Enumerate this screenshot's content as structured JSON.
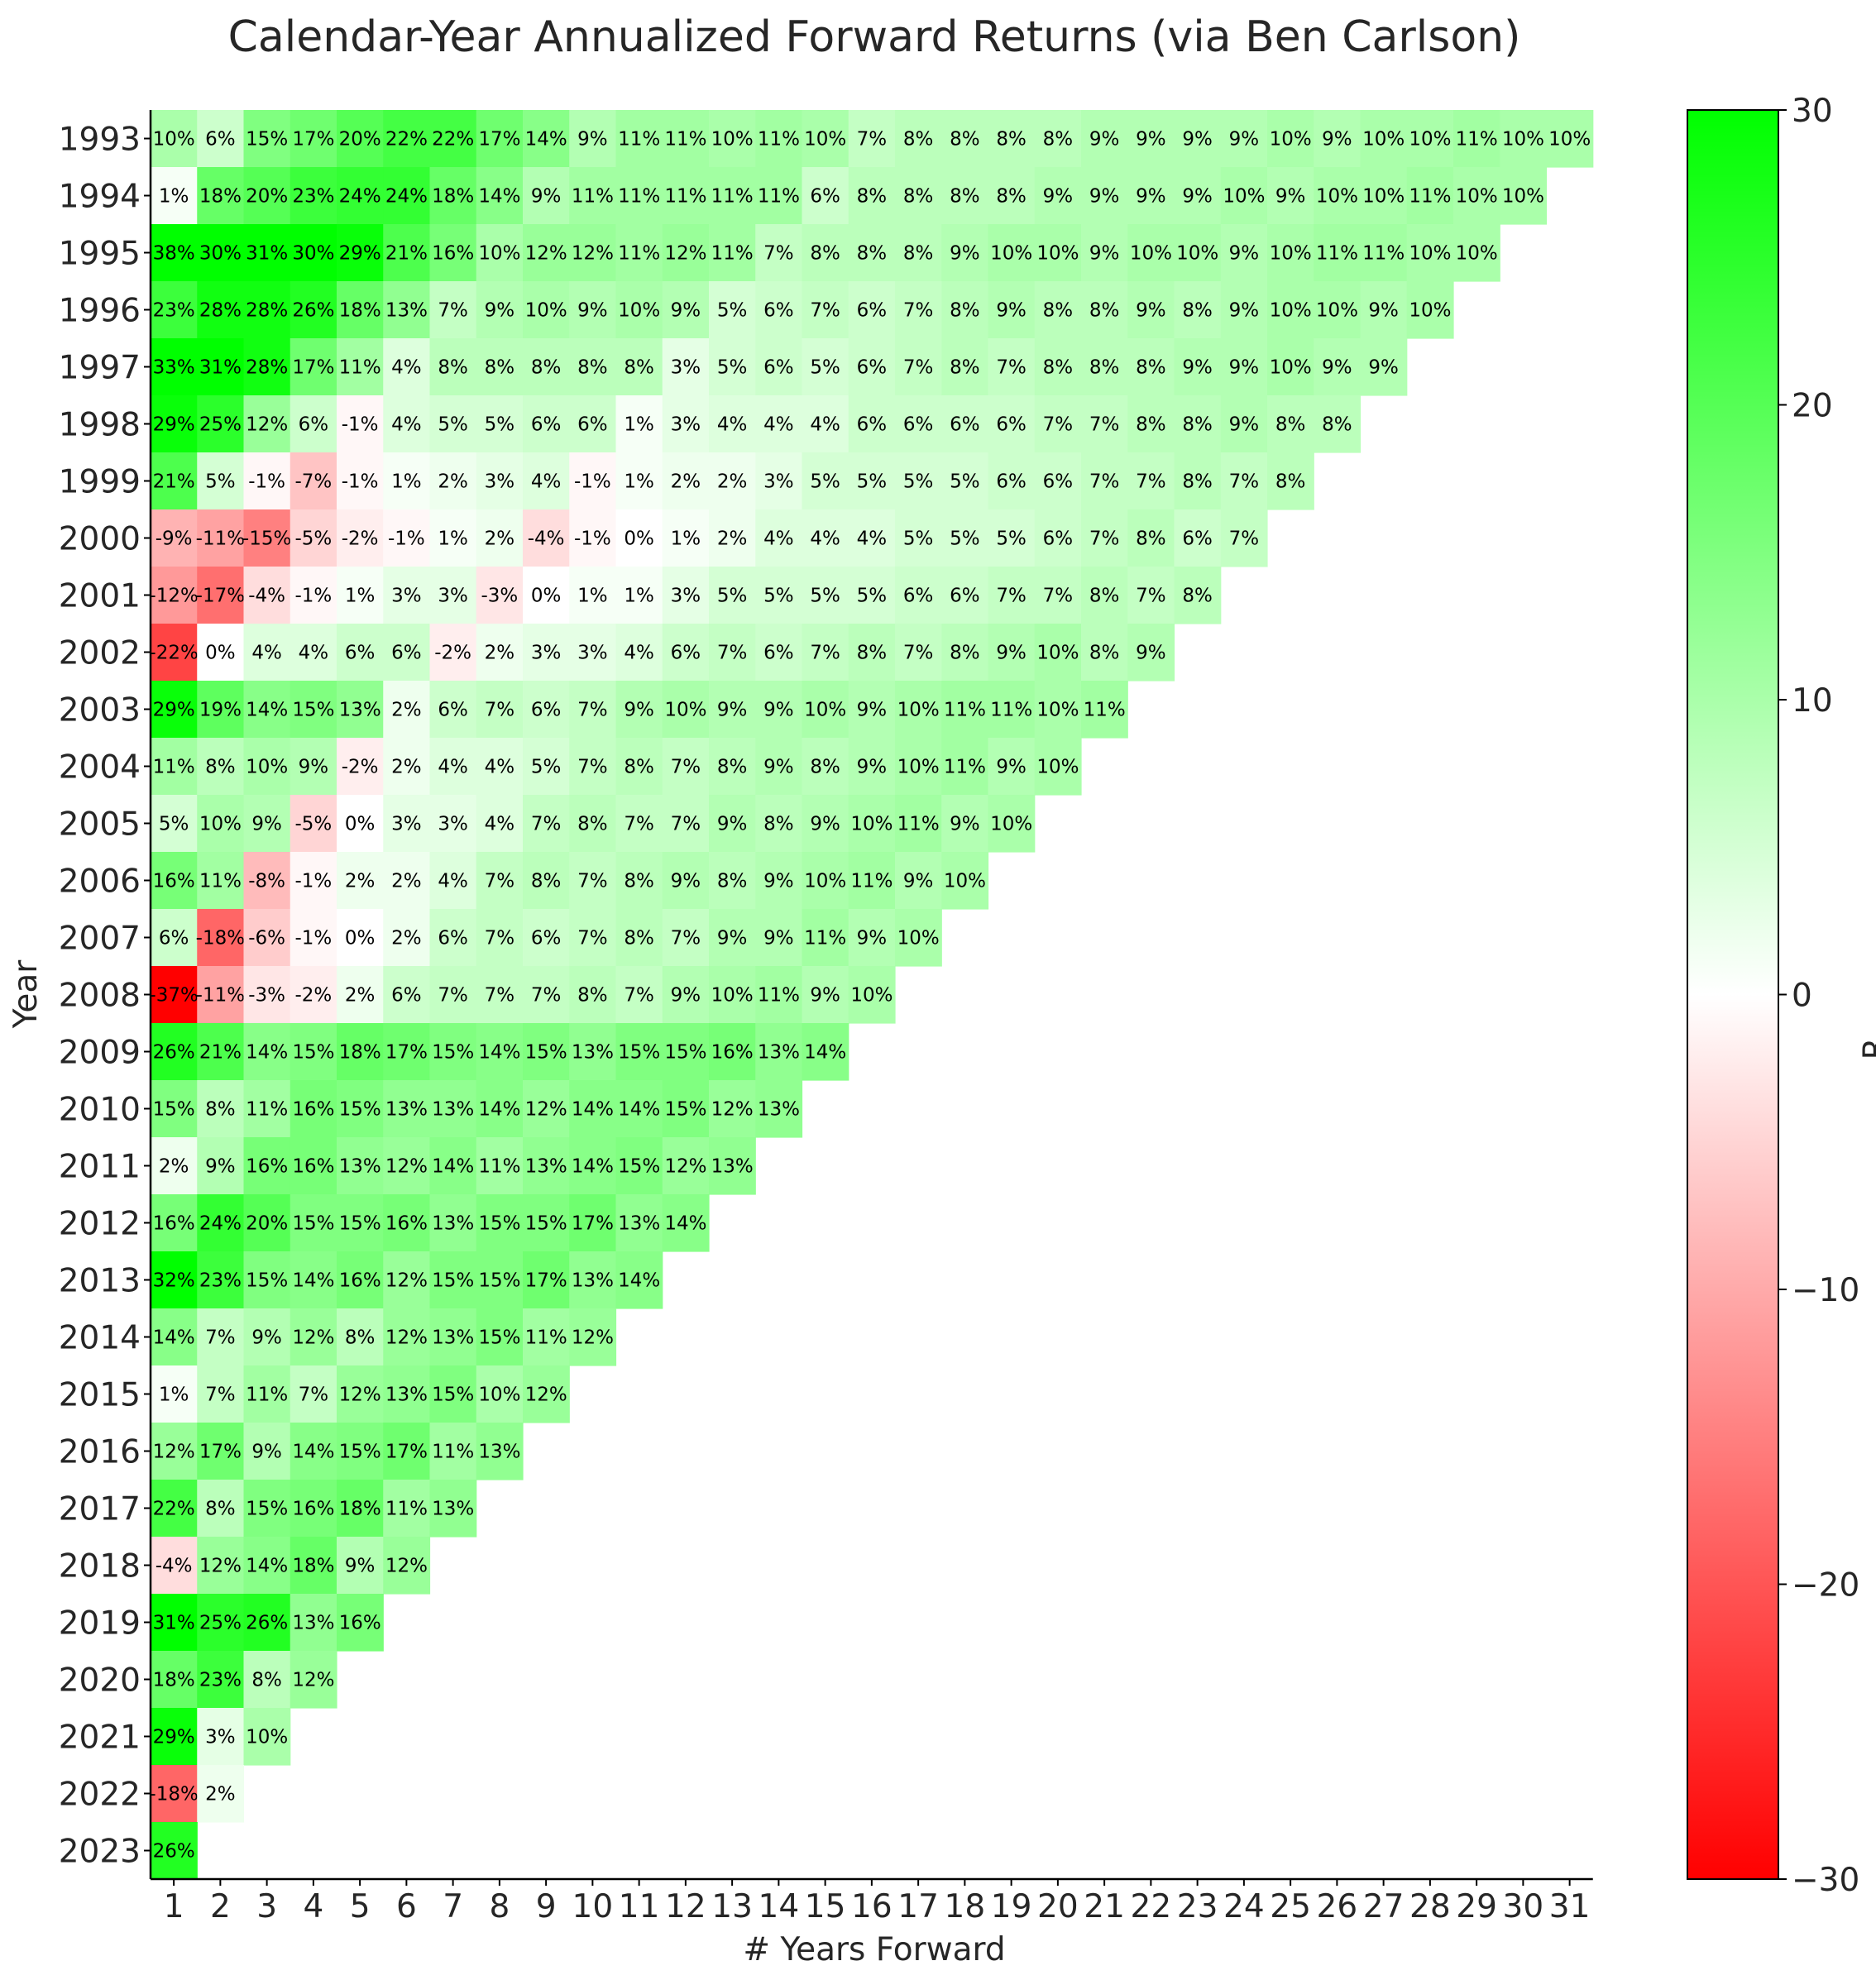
{
  "chart_data": {
    "type": "heatmap",
    "title": "Calendar-Year Annualized Forward Returns (via Ben Carlson)",
    "xlabel": "# Years Forward",
    "ylabel": "Year",
    "colorbar_label": "R",
    "x": [
      1,
      2,
      3,
      4,
      5,
      6,
      7,
      8,
      9,
      10,
      11,
      12,
      13,
      14,
      15,
      16,
      17,
      18,
      19,
      20,
      21,
      22,
      23,
      24,
      25,
      26,
      27,
      28,
      29,
      30,
      31
    ],
    "y": [
      1993,
      1994,
      1995,
      1996,
      1997,
      1998,
      1999,
      2000,
      2001,
      2002,
      2003,
      2004,
      2005,
      2006,
      2007,
      2008,
      2009,
      2010,
      2011,
      2012,
      2013,
      2014,
      2015,
      2016,
      2017,
      2018,
      2019,
      2020,
      2021,
      2022,
      2023
    ],
    "value_format": "percent",
    "colormap": {
      "min": -30,
      "max": 30,
      "low_color": "#ff0000",
      "mid_color": "#ffffff",
      "high_color": "#00ff00"
    },
    "colorbar_ticks": [
      30,
      20,
      10,
      0,
      -10,
      -20,
      -30
    ],
    "colorbar_tick_labels": [
      "30",
      "20",
      "10",
      "0",
      "−10",
      "−20",
      "−30"
    ],
    "grid": false,
    "values": [
      [
        10,
        6,
        15,
        17,
        20,
        22,
        22,
        17,
        14,
        9,
        11,
        11,
        10,
        11,
        10,
        7,
        8,
        8,
        8,
        8,
        9,
        9,
        9,
        9,
        10,
        9,
        10,
        10,
        11,
        10,
        10
      ],
      [
        1,
        18,
        20,
        23,
        24,
        24,
        18,
        14,
        9,
        11,
        11,
        11,
        11,
        11,
        6,
        8,
        8,
        8,
        8,
        9,
        9,
        9,
        9,
        10,
        9,
        10,
        10,
        11,
        10,
        10
      ],
      [
        38,
        30,
        31,
        30,
        29,
        21,
        16,
        10,
        12,
        12,
        11,
        12,
        11,
        7,
        8,
        8,
        8,
        9,
        10,
        10,
        9,
        10,
        10,
        9,
        10,
        11,
        11,
        10,
        10
      ],
      [
        23,
        28,
        28,
        26,
        18,
        13,
        7,
        9,
        10,
        9,
        10,
        9,
        5,
        6,
        7,
        6,
        7,
        8,
        9,
        8,
        8,
        9,
        8,
        9,
        10,
        10,
        9,
        10
      ],
      [
        33,
        31,
        28,
        17,
        11,
        4,
        8,
        8,
        8,
        8,
        8,
        3,
        5,
        6,
        5,
        6,
        7,
        8,
        7,
        8,
        8,
        8,
        9,
        9,
        10,
        9,
        9
      ],
      [
        29,
        25,
        12,
        6,
        -1,
        4,
        5,
        5,
        6,
        6,
        1,
        3,
        4,
        4,
        4,
        6,
        6,
        6,
        6,
        7,
        7,
        8,
        8,
        9,
        8,
        8
      ],
      [
        21,
        5,
        -1,
        -7,
        -1,
        1,
        2,
        3,
        4,
        -1,
        1,
        2,
        2,
        3,
        5,
        5,
        5,
        5,
        6,
        6,
        7,
        7,
        8,
        7,
        8
      ],
      [
        -9,
        -11,
        -15,
        -5,
        -2,
        -1,
        1,
        2,
        -4,
        -1,
        0,
        1,
        2,
        4,
        4,
        4,
        5,
        5,
        5,
        6,
        7,
        8,
        6,
        7
      ],
      [
        -12,
        -17,
        -4,
        -1,
        1,
        3,
        3,
        -3,
        0,
        1,
        1,
        3,
        5,
        5,
        5,
        5,
        6,
        6,
        7,
        7,
        8,
        7,
        8
      ],
      [
        -22,
        0,
        4,
        4,
        6,
        6,
        -2,
        2,
        3,
        3,
        4,
        6,
        7,
        6,
        7,
        8,
        7,
        8,
        9,
        10,
        8,
        9
      ],
      [
        29,
        19,
        14,
        15,
        13,
        2,
        6,
        7,
        6,
        7,
        9,
        10,
        9,
        9,
        10,
        9,
        10,
        11,
        11,
        10,
        11
      ],
      [
        11,
        8,
        10,
        9,
        -2,
        2,
        4,
        4,
        5,
        7,
        8,
        7,
        8,
        9,
        8,
        9,
        10,
        11,
        9,
        10
      ],
      [
        5,
        10,
        9,
        -5,
        0,
        3,
        3,
        4,
        7,
        8,
        7,
        7,
        9,
        8,
        9,
        10,
        11,
        9,
        10
      ],
      [
        16,
        11,
        -8,
        -1,
        2,
        2,
        4,
        7,
        8,
        7,
        8,
        9,
        8,
        9,
        10,
        11,
        9,
        10
      ],
      [
        6,
        -18,
        -6,
        -1,
        0,
        2,
        6,
        7,
        6,
        7,
        8,
        7,
        9,
        9,
        11,
        9,
        10
      ],
      [
        -37,
        -11,
        -3,
        -2,
        2,
        6,
        7,
        7,
        7,
        8,
        7,
        9,
        10,
        11,
        9,
        10
      ],
      [
        26,
        21,
        14,
        15,
        18,
        17,
        15,
        14,
        15,
        13,
        15,
        15,
        16,
        13,
        14
      ],
      [
        15,
        8,
        11,
        16,
        15,
        13,
        13,
        14,
        12,
        14,
        14,
        15,
        12,
        13
      ],
      [
        2,
        9,
        16,
        16,
        13,
        12,
        14,
        11,
        13,
        14,
        15,
        12,
        13
      ],
      [
        16,
        24,
        20,
        15,
        15,
        16,
        13,
        15,
        15,
        17,
        13,
        14
      ],
      [
        32,
        23,
        15,
        14,
        16,
        12,
        15,
        15,
        17,
        13,
        14
      ],
      [
        14,
        7,
        9,
        12,
        8,
        12,
        13,
        15,
        11,
        12
      ],
      [
        1,
        7,
        11,
        7,
        12,
        13,
        15,
        10,
        12
      ],
      [
        12,
        17,
        9,
        14,
        15,
        17,
        11,
        13
      ],
      [
        22,
        8,
        15,
        16,
        18,
        11,
        13
      ],
      [
        -4,
        12,
        14,
        18,
        9,
        12
      ],
      [
        31,
        25,
        26,
        13,
        16
      ],
      [
        18,
        23,
        8,
        12
      ],
      [
        29,
        3,
        10
      ],
      [
        -18,
        2
      ],
      [
        26
      ]
    ]
  }
}
